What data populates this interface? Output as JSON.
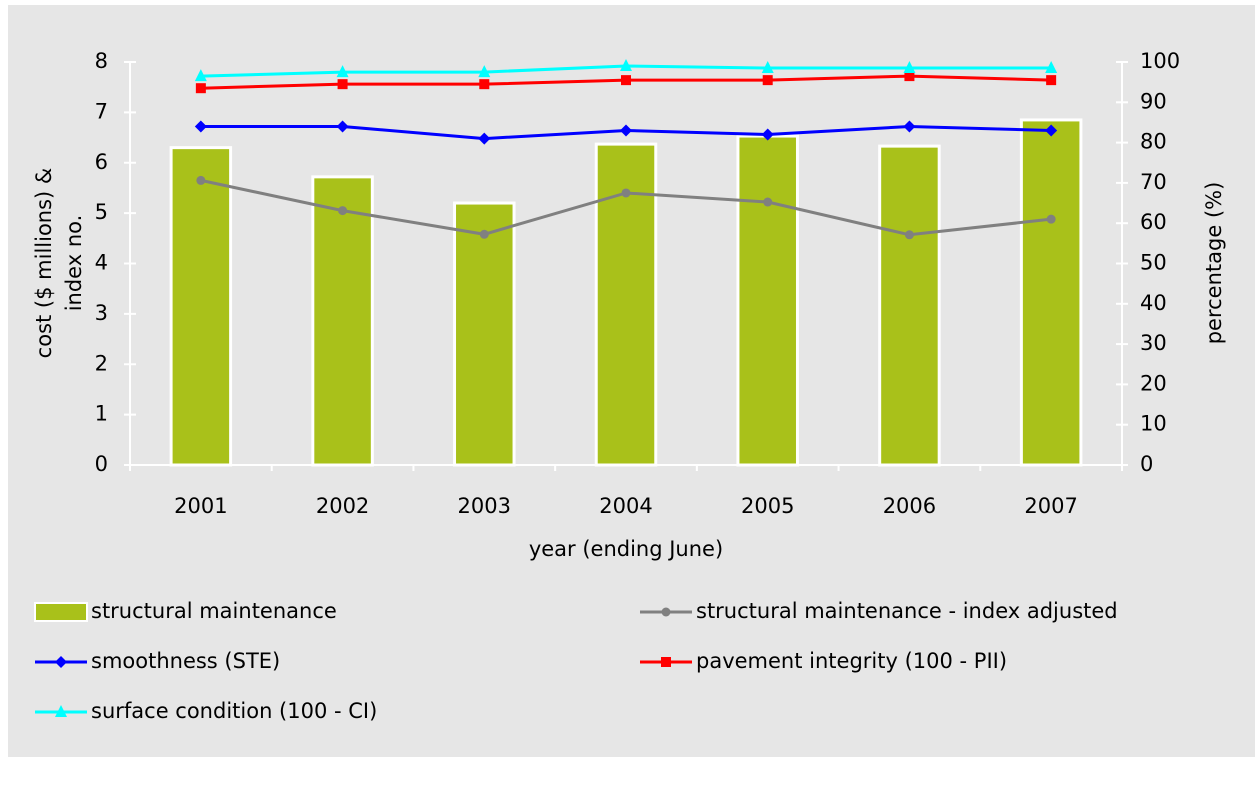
{
  "chart_data": {
    "type": "bar",
    "x_label": "year (ending June)",
    "y_label_lines": [
      "cost ($ millions) &",
      "index no."
    ],
    "y2_label": "percentage (%)",
    "categories": [
      "2001",
      "2002",
      "2003",
      "2004",
      "2005",
      "2006",
      "2007"
    ],
    "ylim": [
      0,
      8
    ],
    "yticks": [
      0,
      1,
      2,
      3,
      4,
      5,
      6,
      7,
      8
    ],
    "y2lim": [
      0,
      100
    ],
    "y2ticks": [
      0,
      10,
      20,
      30,
      40,
      50,
      60,
      70,
      80,
      90,
      100
    ],
    "series": [
      {
        "name": "structural maintenance",
        "type": "bar",
        "color": "#a9c11a",
        "values": [
          6.3,
          5.72,
          5.2,
          6.37,
          6.53,
          6.33,
          6.85
        ]
      },
      {
        "name": "structural maintenance - index adjusted",
        "type": "line",
        "marker": "circle",
        "color": "#808080",
        "values": [
          5.65,
          5.05,
          4.58,
          5.4,
          5.22,
          4.57,
          4.88
        ]
      },
      {
        "name": "smoothness (STE)",
        "type": "line",
        "marker": "diamond",
        "color": "#0000ff",
        "axis": "y2",
        "values": [
          84,
          84,
          81,
          83,
          82,
          84,
          83
        ]
      },
      {
        "name": "pavement integrity (100 - PII)",
        "type": "line",
        "marker": "square",
        "color": "#ff0000",
        "axis": "y2",
        "values": [
          93.5,
          94.5,
          94.5,
          95.5,
          95.5,
          96.5,
          95.5
        ]
      },
      {
        "name": "surface condition (100 - CI)",
        "type": "line",
        "marker": "triangle",
        "color": "#00ffff",
        "axis": "y2",
        "values": [
          96.5,
          97.5,
          97.5,
          99,
          98.5,
          98.5,
          98.5
        ]
      }
    ]
  }
}
